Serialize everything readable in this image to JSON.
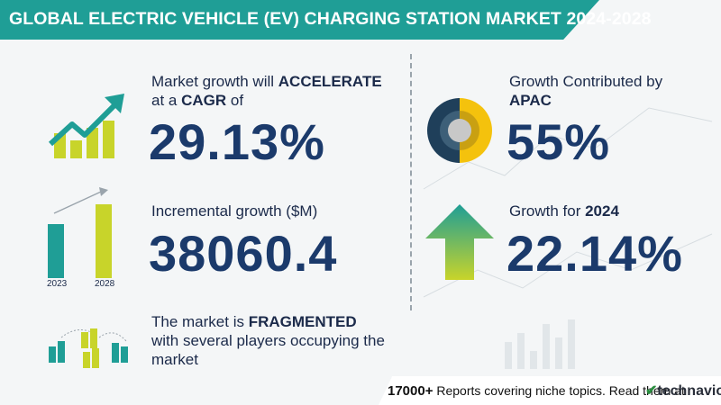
{
  "header": {
    "title": "GLOBAL ELECTRIC VEHICLE (EV) CHARGING STATION MARKET 2024-2028"
  },
  "cagr": {
    "line1_prefix": "Market growth will ",
    "line1_bold": "ACCELERATE",
    "line2_prefix": "at a ",
    "line2_bold": "CAGR",
    "line2_suffix": "  of",
    "value": "29.13%"
  },
  "incremental": {
    "label": "Incremental growth ($M)",
    "value": "38060.4",
    "year_start": "2023",
    "year_end": "2028"
  },
  "fragmented": {
    "line1_prefix": "The market is ",
    "line1_bold": "FRAGMENTED",
    "line2": "with several players occupying the",
    "line3": "market"
  },
  "region": {
    "label_line1": "Growth Contributed by",
    "label_line2": "APAC",
    "value": "55%"
  },
  "growth_year": {
    "label_prefix": "Growth for ",
    "label_bold": "2024",
    "value": "22.14%"
  },
  "footer": {
    "count": "17000+",
    "text": " Reports covering niche topics. Read them at",
    "logo_mark": "✔",
    "logo_text": "technavio"
  },
  "colors": {
    "teal": "#1f9e96",
    "yellow": "#c8d42a",
    "navy": "#1b3a6b",
    "gold": "#f4c20d"
  }
}
